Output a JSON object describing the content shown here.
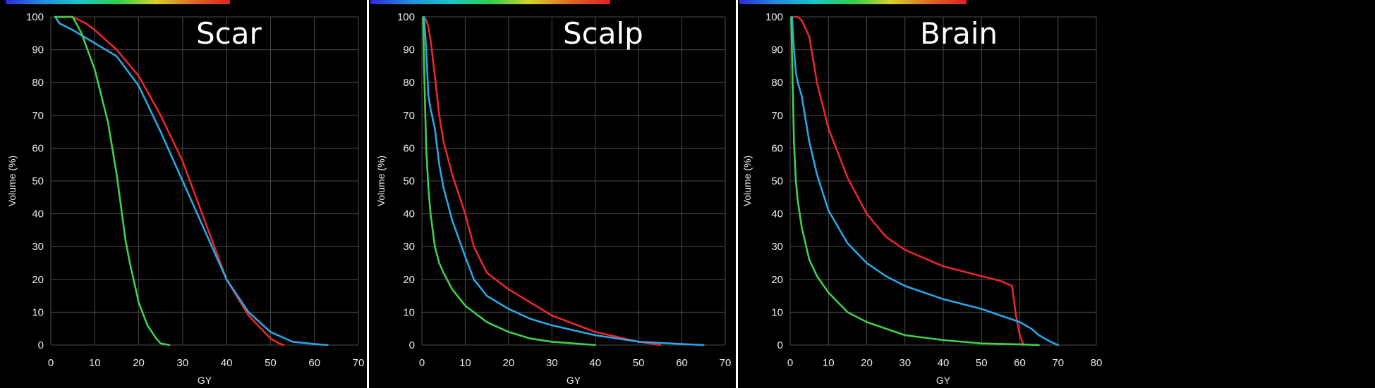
{
  "colors": {
    "background": "#000000",
    "grid": "#4a4a4a",
    "tick_text": "#e8e8e8",
    "series_red": "#e8262b",
    "series_blue": "#2aa6e6",
    "series_green": "#3fd14a"
  },
  "chart_data": [
    {
      "type": "line",
      "title": "Scar",
      "xlabel": "GY",
      "ylabel": "Volume (%)",
      "xlim": [
        0,
        70
      ],
      "ylim": [
        0,
        100
      ],
      "xticks": [
        "0",
        "10",
        "20",
        "30",
        "40",
        "50",
        "60",
        "70"
      ],
      "yticks": [
        "0",
        "10",
        "20",
        "30",
        "40",
        "50",
        "60",
        "70",
        "80",
        "90",
        "100"
      ],
      "grid": true,
      "series": [
        {
          "color": "red",
          "x": [
            1,
            5,
            8,
            10,
            15,
            20,
            25,
            30,
            35,
            40,
            45,
            50,
            52,
            53
          ],
          "y": [
            100,
            100,
            98,
            96,
            90,
            82,
            70,
            56,
            38,
            20,
            9,
            2,
            0.5,
            0
          ]
        },
        {
          "color": "blue",
          "x": [
            1,
            2,
            5,
            10,
            15,
            20,
            25,
            30,
            35,
            40,
            45,
            50,
            55,
            60,
            63
          ],
          "y": [
            100,
            98,
            96,
            92,
            88,
            79,
            65,
            50,
            35,
            20,
            10,
            4,
            1,
            0.3,
            0
          ]
        },
        {
          "color": "green",
          "x": [
            1,
            5,
            7,
            10,
            13,
            15,
            17,
            18,
            20,
            22,
            24,
            25,
            27
          ],
          "y": [
            100,
            100,
            95,
            84,
            68,
            52,
            32,
            25,
            13,
            6,
            2,
            0.5,
            0
          ]
        }
      ]
    },
    {
      "type": "line",
      "title": "Scalp",
      "xlabel": "GY",
      "ylabel": "Volume (%)",
      "xlim": [
        0,
        70
      ],
      "ylim": [
        0,
        100
      ],
      "xticks": [
        "0",
        "10",
        "20",
        "30",
        "40",
        "50",
        "60",
        "70"
      ],
      "yticks": [
        "0",
        "10",
        "20",
        "30",
        "40",
        "50",
        "60",
        "70",
        "80",
        "90",
        "100"
      ],
      "grid": true,
      "series": [
        {
          "color": "red",
          "x": [
            0.5,
            1,
            1.5,
            2,
            3,
            4,
            5,
            7,
            10,
            12,
            15,
            20,
            25,
            30,
            40,
            50,
            55
          ],
          "y": [
            100,
            99,
            97,
            93,
            82,
            70,
            62,
            52,
            40,
            30,
            22,
            17,
            13,
            9,
            4,
            1,
            0
          ]
        },
        {
          "color": "blue",
          "x": [
            0.5,
            1,
            1.5,
            2,
            3,
            4,
            5,
            7,
            10,
            12,
            15,
            20,
            25,
            30,
            40,
            50,
            60,
            65
          ],
          "y": [
            100,
            90,
            76,
            72,
            66,
            55,
            48,
            38,
            27,
            20,
            15,
            11,
            8,
            6,
            3,
            1,
            0.3,
            0
          ]
        },
        {
          "color": "green",
          "x": [
            0.3,
            0.5,
            1,
            1.5,
            2,
            3,
            4,
            5,
            7,
            10,
            15,
            20,
            25,
            30,
            35,
            40
          ],
          "y": [
            100,
            85,
            60,
            48,
            40,
            30,
            25,
            22,
            17,
            12,
            7,
            4,
            2,
            1,
            0.5,
            0
          ]
        }
      ]
    },
    {
      "type": "line",
      "title": "Brain",
      "xlabel": "GY",
      "ylabel": "Volume (%)",
      "xlim": [
        0,
        80
      ],
      "ylim": [
        0,
        100
      ],
      "xticks": [
        "0",
        "10",
        "20",
        "30",
        "40",
        "50",
        "60",
        "70",
        "80"
      ],
      "yticks": [
        "0",
        "10",
        "20",
        "30",
        "40",
        "50",
        "60",
        "70",
        "80",
        "90",
        "100"
      ],
      "grid": true,
      "series": [
        {
          "color": "red",
          "x": [
            1,
            2,
            3,
            5,
            7,
            10,
            15,
            20,
            25,
            30,
            40,
            50,
            55,
            57,
            58,
            59,
            60,
            61
          ],
          "y": [
            100,
            100,
            99,
            94,
            80,
            66,
            51,
            40,
            33,
            29,
            24,
            21,
            19.5,
            18.5,
            18,
            9,
            3,
            0
          ]
        },
        {
          "color": "blue",
          "x": [
            0.5,
            1,
            1.5,
            2,
            3,
            5,
            7,
            10,
            15,
            20,
            25,
            30,
            40,
            50,
            55,
            60,
            63,
            65,
            68,
            70
          ],
          "y": [
            100,
            90,
            83,
            80,
            76,
            62,
            52,
            41,
            31,
            25,
            21,
            18,
            14,
            11,
            9,
            7,
            5,
            3,
            1,
            0
          ]
        },
        {
          "color": "green",
          "x": [
            0.3,
            0.5,
            1,
            1.5,
            2,
            3,
            5,
            7,
            10,
            15,
            20,
            30,
            40,
            50,
            60,
            65
          ],
          "y": [
            100,
            88,
            62,
            50,
            44,
            36,
            26,
            21,
            16,
            10,
            7,
            3,
            1.5,
            0.5,
            0.2,
            0
          ]
        }
      ]
    }
  ]
}
